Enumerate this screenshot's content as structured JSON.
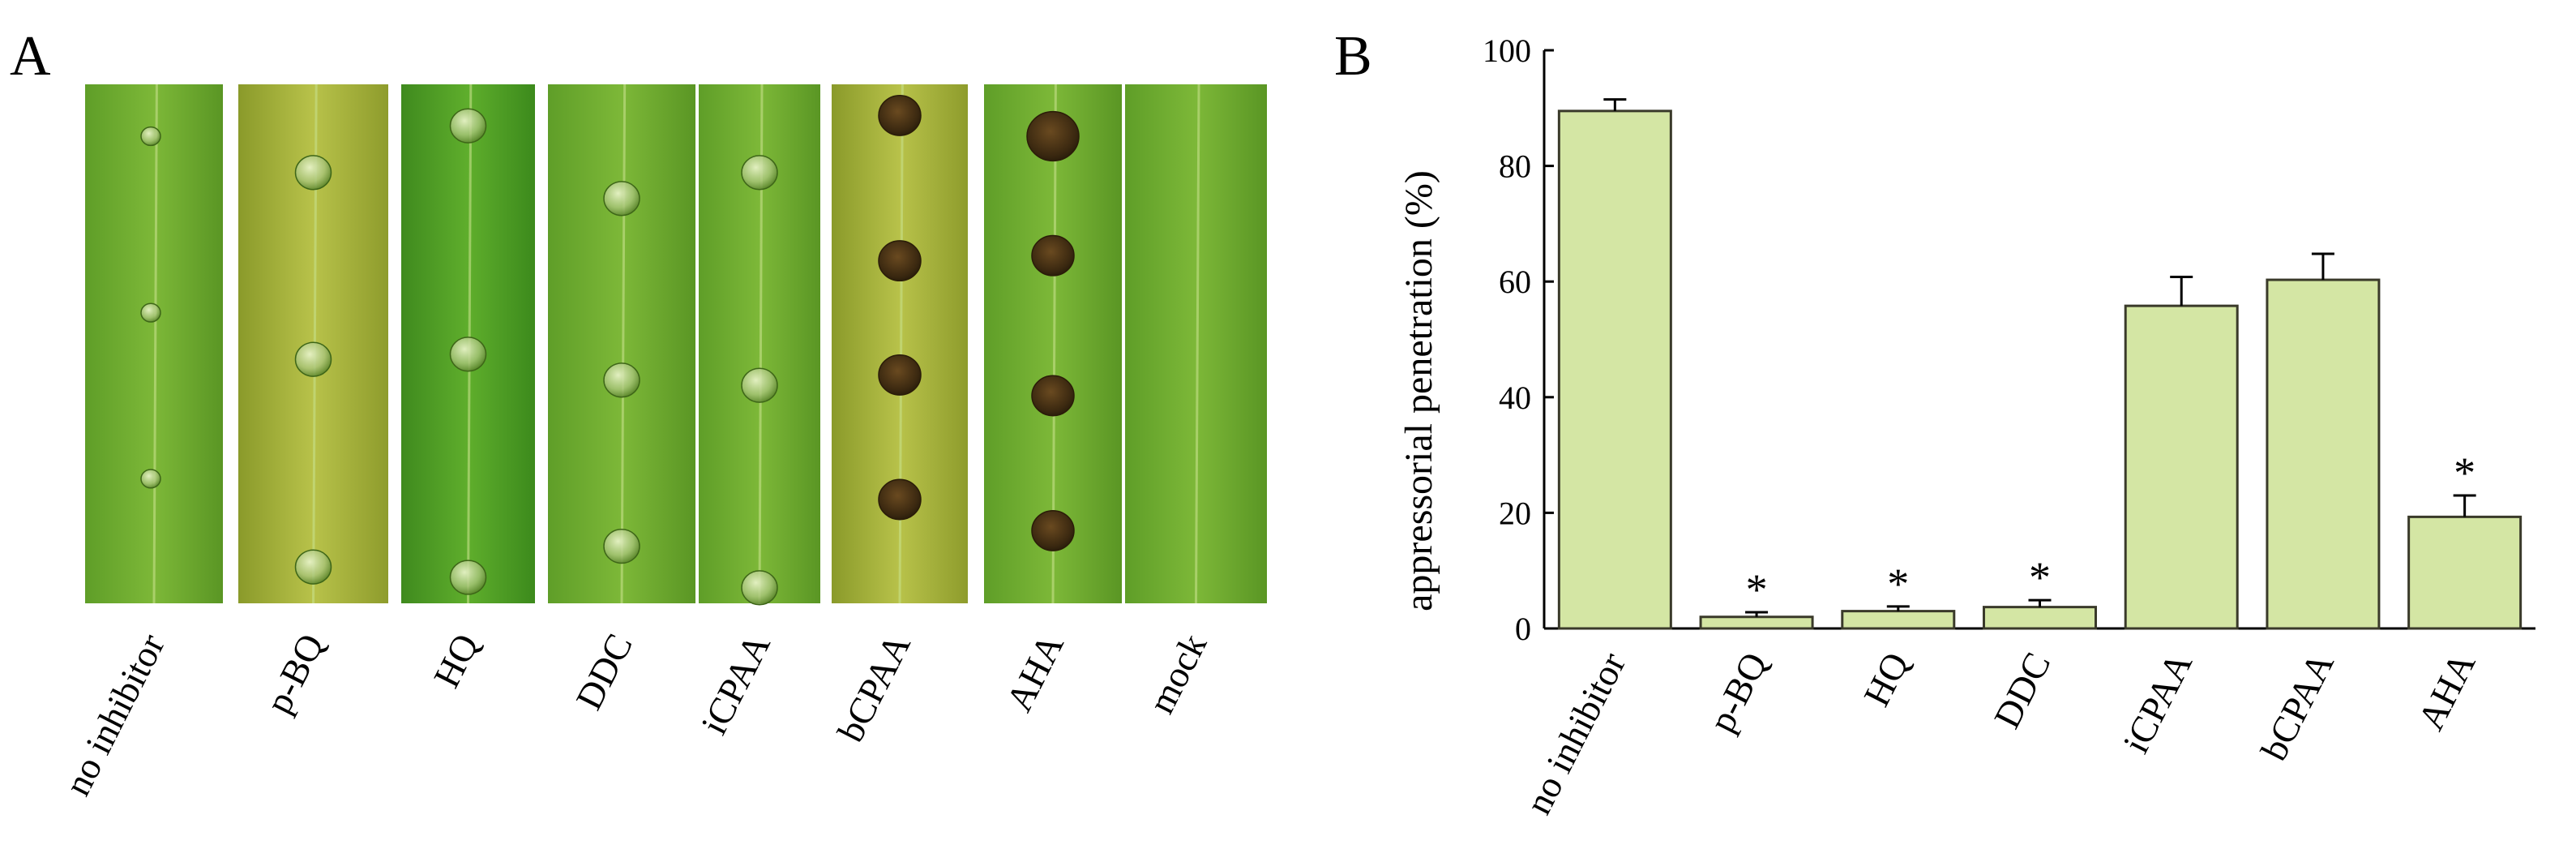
{
  "panel_a": {
    "letter": "A",
    "leaves": [
      {
        "label": "no inhibitor",
        "stain": "none"
      },
      {
        "label": "p-BQ",
        "stain": "none"
      },
      {
        "label": "HQ",
        "stain": "none"
      },
      {
        "label": "DDC",
        "stain": "none"
      },
      {
        "label": "iCPAA",
        "stain": "none"
      },
      {
        "label": "bCPAA",
        "stain": "dark"
      },
      {
        "label": "AHA",
        "stain": "dark"
      },
      {
        "label": "mock",
        "stain": "none"
      }
    ]
  },
  "panel_b": {
    "letter": "B"
  },
  "chart_data": {
    "type": "bar",
    "title": "",
    "xlabel": "",
    "ylabel": "appressorial penetration (%)",
    "ylim": [
      0,
      100
    ],
    "yticks": [
      0,
      20,
      40,
      60,
      80,
      100
    ],
    "categories": [
      "no inhibitor",
      "p-BQ",
      "HQ",
      "DDC",
      "iCPAA",
      "bCPAA",
      "AHA"
    ],
    "values": [
      89.5,
      2,
      3,
      3.7,
      55.8,
      60.3,
      19.3
    ],
    "errors": [
      2,
      0.8,
      0.8,
      1.2,
      5,
      4.5,
      3.7
    ],
    "significance": [
      "",
      "*",
      "*",
      "*",
      "",
      "",
      "*"
    ],
    "bar_color": "#d4e6a4",
    "bar_edge": "#3a3a2a",
    "grid": false
  }
}
